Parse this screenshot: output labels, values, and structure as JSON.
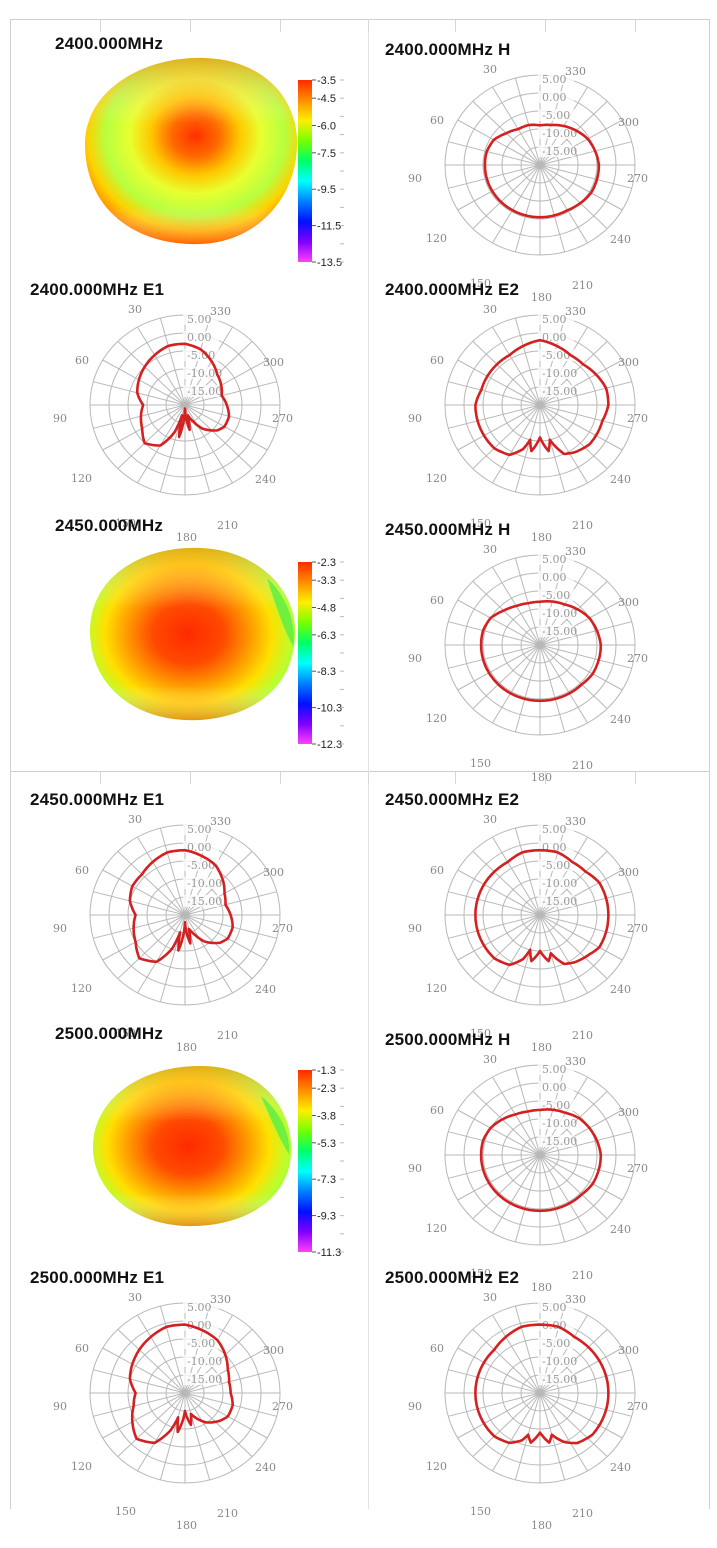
{
  "colors": {
    "trace": "#d42020",
    "grid": "#b8b8b8",
    "colorbar": [
      "#ff2a00",
      "#ff8c00",
      "#ffee00",
      "#77ff00",
      "#00ff66",
      "#00ffff",
      "#0080ff",
      "#0010ff",
      "#8000ff",
      "#ff40ff"
    ]
  },
  "polar_axes": {
    "angle_labels": [
      "30",
      "330",
      "60",
      "300",
      "90",
      "270",
      "120",
      "240",
      "150",
      "210",
      "180"
    ],
    "ring_labels": [
      "5.00",
      "0.00",
      "-5.00",
      "-10.00",
      "-15.00"
    ]
  },
  "chart_data": [
    {
      "type": "heatmap",
      "title": "2400.000MHz",
      "colorbar_ticks": [
        "-3.5",
        "-4.5",
        "-6.0",
        "-7.5",
        "-9.5",
        "-11.5",
        "-13.5"
      ],
      "value_range": [
        -13.5,
        -3.5
      ]
    },
    {
      "type": "polar",
      "title": "2400.000MHz  H",
      "rrange": [
        -20,
        5
      ],
      "theta": [
        0,
        15,
        30,
        45,
        60,
        75,
        90,
        105,
        120,
        135,
        150,
        165,
        180,
        195,
        210,
        225,
        240,
        255,
        270,
        285,
        300,
        315,
        330,
        345
      ],
      "r": [
        -9,
        -8.5,
        -8.5,
        -7.5,
        -6,
        -5.5,
        -5.5,
        -5.5,
        -5.5,
        -5.5,
        -5.5,
        -5.5,
        -5.5,
        -5.5,
        -5.5,
        -5,
        -4.5,
        -4.5,
        -4.5,
        -5,
        -5.5,
        -6.5,
        -7.5,
        -8.5
      ]
    },
    {
      "type": "polar",
      "title": "2400.000MHz  E1",
      "rrange": [
        -20,
        5
      ],
      "theta": [
        0,
        15,
        30,
        45,
        60,
        75,
        90,
        105,
        120,
        135,
        150,
        160,
        165,
        170,
        180,
        190,
        195,
        205,
        215,
        230,
        240,
        255,
        270,
        285,
        300,
        315,
        330,
        345
      ],
      "r": [
        -3,
        -3,
        -4,
        -5,
        -6,
        -7,
        -9,
        -8,
        -7,
        -5,
        -7,
        -12,
        -17,
        -11,
        -19,
        -13,
        -17,
        -15,
        -12,
        -9,
        -8,
        -8,
        -9,
        -10,
        -9,
        -8,
        -6,
        -4
      ]
    },
    {
      "type": "polar",
      "title": "2400.000MHz  E2",
      "rrange": [
        -20,
        5
      ],
      "theta": [
        0,
        15,
        30,
        45,
        60,
        75,
        90,
        105,
        120,
        135,
        150,
        160,
        165,
        170,
        180,
        190,
        195,
        205,
        215,
        230,
        240,
        255,
        270,
        285,
        300,
        315,
        330,
        345
      ],
      "r": [
        -2,
        -3,
        -4,
        -4,
        -4,
        -4,
        -3,
        -3,
        -3,
        -3,
        -4,
        -7,
        -10,
        -7,
        -11,
        -7,
        -10,
        -5,
        -4,
        -3,
        -3,
        -3,
        -2,
        -2,
        -3,
        -4,
        -4,
        -3
      ]
    },
    {
      "type": "heatmap",
      "title": "2450.000MHz",
      "colorbar_ticks": [
        "-2.3",
        "-3.3",
        "-4.8",
        "-6.3",
        "-8.3",
        "-10.3",
        "-12.3"
      ],
      "value_range": [
        -12.3,
        -2.3
      ]
    },
    {
      "type": "polar",
      "title": "2450.000MHz  H",
      "rrange": [
        -20,
        5
      ],
      "theta": [
        0,
        15,
        30,
        45,
        60,
        75,
        90,
        105,
        120,
        135,
        150,
        165,
        180,
        195,
        210,
        225,
        240,
        255,
        270,
        285,
        300,
        315,
        330,
        345
      ],
      "r": [
        -8,
        -8,
        -7.5,
        -6.5,
        -5,
        -4.5,
        -4.5,
        -4.5,
        -4.5,
        -4.5,
        -4.5,
        -4.5,
        -4.5,
        -4.5,
        -4.5,
        -4.5,
        -4,
        -4,
        -4,
        -4.5,
        -5,
        -6,
        -7,
        -7.5
      ]
    },
    {
      "type": "polar",
      "title": "2450.000MHz  E1",
      "rrange": [
        -20,
        5
      ],
      "theta": [
        0,
        15,
        30,
        45,
        60,
        75,
        90,
        105,
        120,
        135,
        150,
        160,
        165,
        170,
        180,
        190,
        195,
        205,
        215,
        230,
        240,
        255,
        270,
        285,
        300,
        315,
        330,
        345
      ],
      "r": [
        -2,
        -2,
        -3,
        -4,
        -4,
        -5,
        -7,
        -6,
        -5,
        -3,
        -5,
        -10,
        -15,
        -10,
        -18,
        -12,
        -16,
        -14,
        -11,
        -8,
        -7,
        -7,
        -8,
        -9,
        -8,
        -6,
        -4,
        -3
      ]
    },
    {
      "type": "polar",
      "title": "2450.000MHz  E2",
      "rrange": [
        -20,
        5
      ],
      "theta": [
        0,
        15,
        30,
        45,
        60,
        75,
        90,
        105,
        120,
        135,
        150,
        160,
        165,
        170,
        180,
        190,
        195,
        205,
        215,
        230,
        240,
        255,
        270,
        285,
        300,
        315,
        330,
        345
      ],
      "r": [
        -2,
        -2,
        -3,
        -3,
        -3,
        -3,
        -3,
        -3,
        -3,
        -3,
        -4,
        -7,
        -10,
        -7,
        -10,
        -7,
        -9,
        -5,
        -4,
        -3,
        -2,
        -2,
        -2,
        -2,
        -2,
        -3,
        -3,
        -2
      ]
    },
    {
      "type": "heatmap",
      "title": "2500.000MHz",
      "colorbar_ticks": [
        "-1.3",
        "-2.3",
        "-3.8",
        "-5.3",
        "-7.3",
        "-9.3",
        "-11.3"
      ],
      "value_range": [
        -11.3,
        -1.3
      ]
    },
    {
      "type": "polar",
      "title": "2500.000MHz  H",
      "rrange": [
        -20,
        5
      ],
      "theta": [
        0,
        15,
        30,
        45,
        60,
        75,
        90,
        105,
        120,
        135,
        150,
        165,
        180,
        195,
        210,
        225,
        240,
        255,
        270,
        285,
        300,
        315,
        330,
        345
      ],
      "r": [
        -7.5,
        -7.5,
        -7,
        -6,
        -5,
        -4.5,
        -4.5,
        -4.5,
        -4.5,
        -4.5,
        -4.5,
        -4.5,
        -4.5,
        -4.5,
        -4.5,
        -4.5,
        -4,
        -4,
        -4,
        -4.5,
        -5,
        -5.5,
        -6.5,
        -7
      ]
    },
    {
      "type": "polar",
      "title": "2500.000MHz  E1",
      "rrange": [
        -20,
        5
      ],
      "theta": [
        0,
        15,
        30,
        45,
        60,
        75,
        90,
        105,
        120,
        135,
        150,
        160,
        165,
        170,
        180,
        190,
        195,
        205,
        215,
        230,
        240,
        255,
        270,
        285,
        300,
        315,
        330,
        345
      ],
      "r": [
        -1,
        -1,
        -2,
        -3,
        -4,
        -5,
        -7,
        -6,
        -4,
        -2,
        -4,
        -9,
        -13,
        -9,
        -15,
        -11,
        -14,
        -12,
        -10,
        -8,
        -7,
        -7,
        -8,
        -8,
        -7,
        -5,
        -3,
        -2
      ]
    },
    {
      "type": "polar",
      "title": "2500.000MHz  E2",
      "rrange": [
        -20,
        5
      ],
      "theta": [
        0,
        15,
        30,
        45,
        60,
        75,
        90,
        105,
        120,
        135,
        150,
        160,
        165,
        170,
        180,
        190,
        195,
        205,
        215,
        230,
        240,
        255,
        270,
        285,
        300,
        315,
        330,
        345
      ],
      "r": [
        -1,
        -1,
        -2,
        -3,
        -3,
        -3,
        -3,
        -3,
        -3,
        -3,
        -4,
        -6,
        -8,
        -6,
        -9,
        -6,
        -8,
        -5,
        -3,
        -2,
        -2,
        -2,
        -2,
        -2,
        -2,
        -2,
        -2,
        -1
      ]
    }
  ]
}
